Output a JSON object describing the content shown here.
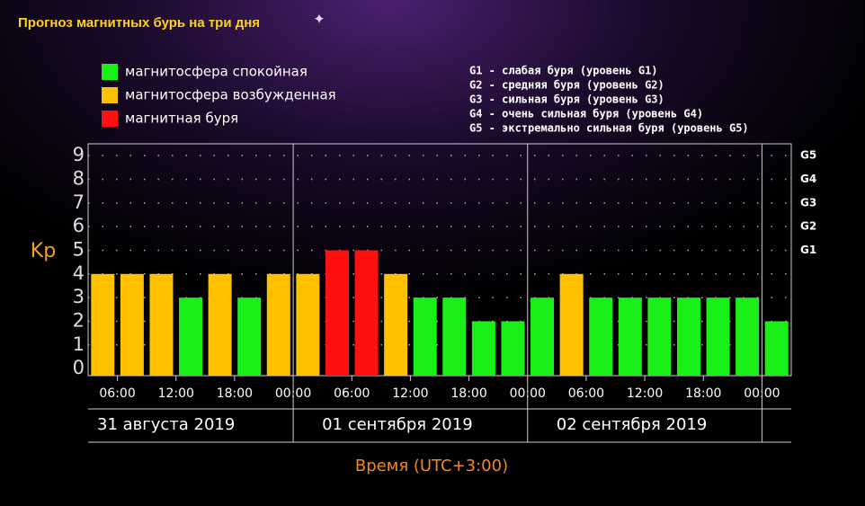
{
  "chart_data": {
    "type": "bar",
    "title": "Прогноз магнитных бурь на три дня",
    "ylabel": "Kp",
    "xlabel": "Время (UTC+3:00)",
    "legend": [
      {
        "name": "магнитосфера спокойная",
        "color": "#18f018"
      },
      {
        "name": "магнитосфера возбужденная",
        "color": "#ffc000"
      },
      {
        "name": "магнитная буря",
        "color": "#ff1010"
      }
    ],
    "notes": [
      "G1 - слабая буря (уровень G1)",
      "G2 - средняя буря (уровень G2)",
      "G3 - сильная буря (уровень G3)",
      "G4 - очень сильная буря (уровень G4)",
      "G5 - экстремально сильная буря (уровень G5)"
    ],
    "categories": [
      null,
      null,
      null,
      null,
      null,
      null,
      null,
      null,
      null,
      null,
      null,
      null,
      null,
      null,
      null,
      null,
      null,
      null,
      null,
      null,
      null,
      null,
      null,
      null
    ],
    "values": [
      4,
      4,
      4,
      3,
      4,
      3,
      4,
      4,
      5,
      5,
      4,
      3,
      3,
      2,
      2,
      3,
      4,
      3,
      3,
      3,
      3,
      3,
      3,
      2
    ],
    "colors": [
      "#ffc000",
      "#ffc000",
      "#ffc000",
      "#18f018",
      "#ffc000",
      "#18f018",
      "#ffc000",
      "#ffc000",
      "#ff1010",
      "#ff1010",
      "#ffc000",
      "#18f018",
      "#18f018",
      "#18f018",
      "#18f018",
      "#18f018",
      "#ffc000",
      "#18f018",
      "#18f018",
      "#18f018",
      "#18f018",
      "#18f018",
      "#18f018",
      "#18f018"
    ],
    "xlim": [
      3,
      75
    ],
    "xticks": [
      {
        "value": 6,
        "label": "06:00"
      },
      {
        "value": 12,
        "label": "12:00"
      },
      {
        "value": 18,
        "label": "18:00"
      },
      {
        "value": 24,
        "label": "00:00"
      },
      {
        "value": 30,
        "label": "06:00"
      },
      {
        "value": 36,
        "label": "12:00"
      },
      {
        "value": 42,
        "label": "18:00"
      },
      {
        "value": 48,
        "label": "00:00"
      },
      {
        "value": 54,
        "label": "06:00"
      },
      {
        "value": 60,
        "label": "12:00"
      },
      {
        "value": 66,
        "label": "18:00"
      },
      {
        "value": 72,
        "label": "00:00"
      }
    ],
    "days": [
      "31 августа 2019",
      "01 сентября 2019",
      "02 сентября 2019"
    ],
    "ylim": [
      -0.3,
      9.5
    ],
    "yticks": [
      0,
      1,
      2,
      3,
      4,
      5,
      6,
      7,
      8,
      9
    ],
    "y2lim": [
      -0.3,
      9.5
    ],
    "y2ticks": [
      {
        "value": 5,
        "label": "G1"
      },
      {
        "value": 6,
        "label": "G2"
      },
      {
        "value": 7,
        "label": "G3"
      },
      {
        "value": 8,
        "label": "G4"
      },
      {
        "value": 9,
        "label": "G5"
      }
    ],
    "grid": true
  }
}
